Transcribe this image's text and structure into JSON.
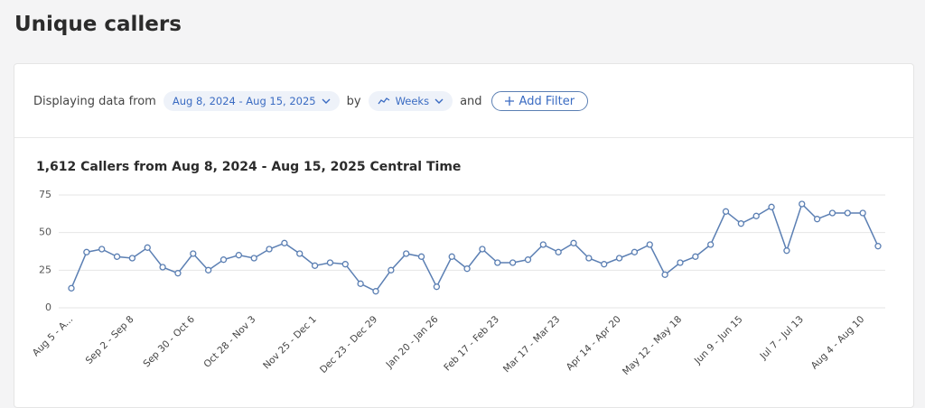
{
  "header": {
    "title": "Unique callers"
  },
  "filter": {
    "prefix": "Displaying data from",
    "date_range": "Aug 8, 2024 - Aug 15, 2025",
    "by": "by",
    "period": "Weeks",
    "and": "and",
    "add_filter": "Add Filter"
  },
  "chart_data": {
    "type": "line",
    "title": "1,612 Callers from Aug 8, 2024 - Aug 15, 2025 Central Time",
    "categories": [
      "Aug 5 - A...",
      null,
      null,
      null,
      "Sep 2 - Sep 8",
      null,
      null,
      null,
      "Sep 30 - Oct 6",
      null,
      null,
      null,
      "Oct 28 - Nov 3",
      null,
      null,
      null,
      "Nov 25 - Dec 1",
      null,
      null,
      null,
      "Dec 23 - Dec 29",
      null,
      null,
      null,
      "Jan 20 - Jan 26",
      null,
      null,
      null,
      "Feb 17 - Feb 23",
      null,
      null,
      null,
      "Mar 17 - Mar 23",
      null,
      null,
      null,
      "Apr 14 - Apr 20",
      null,
      null,
      null,
      "May 12 - May 18",
      null,
      null,
      null,
      "Jun 9 - Jun 15",
      null,
      null,
      null,
      "Jul 7 - Jul 13",
      null,
      null,
      null,
      "Aug 4 - Aug 10",
      null
    ],
    "values": [
      13,
      37,
      39,
      34,
      33,
      40,
      27,
      23,
      36,
      25,
      32,
      35,
      33,
      39,
      43,
      36,
      28,
      30,
      29,
      16,
      11,
      25,
      36,
      34,
      14,
      34,
      26,
      39,
      30,
      30,
      32,
      42,
      37,
      43,
      33,
      29,
      33,
      37,
      42,
      22,
      30,
      34,
      42,
      64,
      56,
      61,
      67,
      38,
      69,
      59,
      63,
      63,
      63,
      41
    ],
    "color": "#5b7fb3",
    "ylim": [
      0,
      75
    ],
    "yticks": [
      0,
      25,
      50,
      75
    ],
    "grid": true
  }
}
